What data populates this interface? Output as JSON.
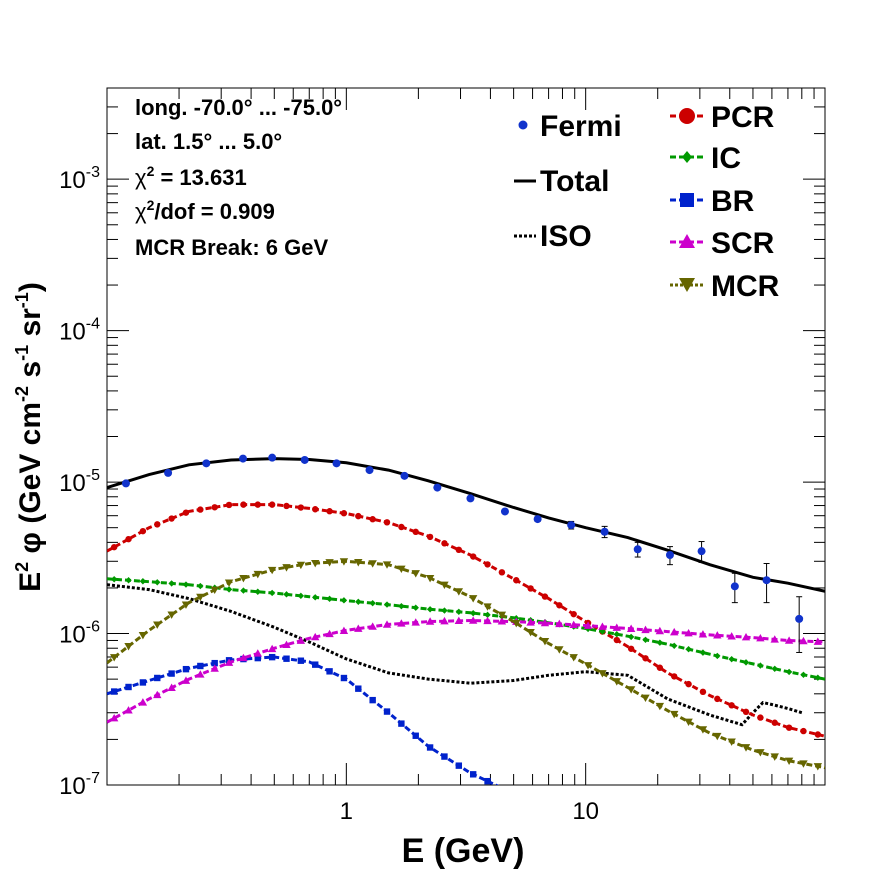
{
  "chart_data": {
    "type": "line",
    "x_scale": "log",
    "y_scale": "log",
    "xlim": [
      0.1,
      100
    ],
    "ylim": [
      1e-07,
      0.004
    ],
    "xlabel": "E (GeV)",
    "ylabel_parts": {
      "base1": "E",
      "sup1": "2",
      "mid": " φ (GeV cm",
      "sup2": "-2",
      "mid2": " s",
      "sup3": "-1",
      "mid3": " sr",
      "sup4": "-1",
      "end": ")"
    },
    "x_ticks": [
      {
        "value": 1,
        "label": "1"
      },
      {
        "value": 10,
        "label": "10"
      }
    ],
    "y_ticks": [
      {
        "value": 1e-07,
        "base": "10",
        "exp": "-7"
      },
      {
        "value": 1e-06,
        "base": "10",
        "exp": "-6"
      },
      {
        "value": 1e-05,
        "base": "10",
        "exp": "-5"
      },
      {
        "value": 0.0001,
        "base": "10",
        "exp": "-4"
      },
      {
        "value": 0.001,
        "base": "10",
        "exp": "-3"
      }
    ],
    "info": {
      "line1": "long. -70.0° ... -75.0°",
      "line2": "lat. 1.5° ... 5.0°",
      "chi2_sym": "χ",
      "chi2_sup": "2",
      "chi2_val": " = 13.631",
      "chi2dof_sym": "χ",
      "chi2dof_sup": "2",
      "chi2dof_val": "/dof = 0.909",
      "line5": "MCR Break:  6 GeV"
    },
    "legend_left": [
      {
        "label": "Fermi",
        "style": "marker-circle"
      },
      {
        "label": "Total",
        "style": "line-solid"
      },
      {
        "label": "ISO",
        "style": "line-dotted"
      }
    ],
    "legend_right": [
      {
        "label": "PCR",
        "color": "#cc0000",
        "marker": "circle"
      },
      {
        "label": "IC",
        "color": "#009900",
        "marker": "diamond"
      },
      {
        "label": "BR",
        "color": "#0022cc",
        "marker": "square"
      },
      {
        "label": "SCR",
        "color": "#cc00cc",
        "marker": "triangle-up"
      },
      {
        "label": "MCR",
        "color": "#666600",
        "marker": "triangle-down"
      }
    ],
    "fermi": {
      "color": "#1133cc",
      "x": [
        0.12,
        0.18,
        0.26,
        0.37,
        0.49,
        0.67,
        0.91,
        1.25,
        1.75,
        2.4,
        3.3,
        4.6,
        6.3,
        8.7,
        12,
        16.5,
        22.5,
        30.5,
        42,
        57,
        78
      ],
      "y": [
        9.8e-06,
        1.15e-05,
        1.33e-05,
        1.43e-05,
        1.45e-05,
        1.4e-05,
        1.33e-05,
        1.2e-05,
        1.1e-05,
        9.2e-06,
        7.8e-06,
        6.4e-06,
        5.7e-06,
        5.2e-06,
        4.7e-06,
        3.6e-06,
        3.3e-06,
        3.5e-06,
        2.05e-06,
        2.25e-06,
        1.25e-06
      ],
      "err": [
        2e-07,
        2e-07,
        2e-07,
        2e-07,
        2e-07,
        2e-07,
        2e-07,
        2e-07,
        2e-07,
        2e-07,
        2e-07,
        2e-07,
        2e-07,
        3e-07,
        4e-07,
        4e-07,
        4.5e-07,
        5.5e-07,
        4.5e-07,
        6.5e-07,
        5e-07
      ]
    },
    "series": [
      {
        "name": "Total",
        "color": "#000000",
        "dash": "solid",
        "marker": "none",
        "x": [
          0.1,
          0.15,
          0.22,
          0.33,
          0.5,
          0.7,
          1,
          1.5,
          2.2,
          3.3,
          5,
          7,
          10,
          15,
          22,
          33,
          50,
          70,
          100
        ],
        "y": [
          9.2e-06,
          1.12e-05,
          1.3e-05,
          1.4e-05,
          1.43e-05,
          1.41e-05,
          1.34e-05,
          1.2e-05,
          1.02e-05,
          8.4e-06,
          6.8e-06,
          5.8e-06,
          5e-06,
          4.3e-06,
          3.55e-06,
          2.85e-06,
          2.35e-06,
          2.15e-06,
          1.9e-06
        ]
      },
      {
        "name": "ISO",
        "color": "#000000",
        "dash": "dotted",
        "marker": "none",
        "x": [
          0.1,
          0.15,
          0.22,
          0.33,
          0.5,
          0.7,
          1,
          1.5,
          2.2,
          3.3,
          5,
          7,
          10,
          15,
          22,
          33,
          45,
          50,
          55,
          60,
          70,
          80
        ],
        "y": [
          2.1e-06,
          1.95e-06,
          1.7e-06,
          1.4e-06,
          1.1e-06,
          8.8e-07,
          6.8e-07,
          5.5e-07,
          5e-07,
          4.7e-07,
          4.9e-07,
          5.3e-07,
          5.6e-07,
          5.3e-07,
          3.7e-07,
          2.9e-07,
          2.5e-07,
          3e-07,
          3.5e-07,
          3.4e-07,
          3.2e-07,
          3e-07
        ]
      },
      {
        "name": "PCR",
        "color": "#cc0000",
        "dash": "dashed",
        "marker": "circle",
        "x": [
          0.1,
          0.15,
          0.22,
          0.33,
          0.5,
          0.7,
          1,
          1.5,
          2.2,
          3.3,
          5,
          7,
          10,
          15,
          22,
          33,
          50,
          70,
          100
        ],
        "y": [
          3.5e-06,
          5e-06,
          6.4e-06,
          7.1e-06,
          7.1e-06,
          6.7e-06,
          6.2e-06,
          5.4e-06,
          4.4e-06,
          3.3e-06,
          2.3e-06,
          1.7e-06,
          1.2e-06,
          8.2e-07,
          5.5e-07,
          3.9e-07,
          2.9e-07,
          2.4e-07,
          2.1e-07
        ]
      },
      {
        "name": "IC",
        "color": "#009900",
        "dash": "dashed",
        "marker": "diamond",
        "x": [
          0.1,
          0.15,
          0.22,
          0.33,
          0.5,
          0.7,
          1,
          1.5,
          2.2,
          3.3,
          5,
          7,
          10,
          15,
          22,
          33,
          50,
          70,
          100
        ],
        "y": [
          2.3e-06,
          2.2e-06,
          2.1e-06,
          1.95e-06,
          1.85e-06,
          1.75e-06,
          1.65e-06,
          1.55e-06,
          1.45e-06,
          1.37e-06,
          1.27e-06,
          1.18e-06,
          1.08e-06,
          9.6e-07,
          8.5e-07,
          7.3e-07,
          6.3e-07,
          5.6e-07,
          5e-07
        ]
      },
      {
        "name": "BR",
        "color": "#0022cc",
        "dash": "dashed",
        "marker": "square",
        "x": [
          0.1,
          0.15,
          0.22,
          0.33,
          0.5,
          0.7,
          1,
          1.5,
          2.2,
          3.3,
          4.5
        ],
        "y": [
          4e-07,
          4.9e-07,
          5.9e-07,
          6.7e-07,
          7e-07,
          6.5e-07,
          5e-07,
          3e-07,
          1.8e-07,
          1.2e-07,
          9.5e-08
        ]
      },
      {
        "name": "SCR",
        "color": "#cc00cc",
        "dash": "dashed",
        "marker": "triangle-up",
        "x": [
          0.1,
          0.15,
          0.22,
          0.33,
          0.5,
          0.7,
          1,
          1.5,
          2.2,
          3.3,
          5,
          7,
          10,
          15,
          22,
          33,
          50,
          70,
          100
        ],
        "y": [
          2.6e-07,
          3.7e-07,
          5e-07,
          6.5e-07,
          8e-07,
          9.3e-07,
          1.05e-06,
          1.15e-06,
          1.2e-06,
          1.22e-06,
          1.2e-06,
          1.17e-06,
          1.13e-06,
          1.08e-06,
          1.03e-06,
          9.8e-07,
          9.4e-07,
          9e-07,
          8.8e-07
        ]
      },
      {
        "name": "MCR",
        "color": "#666600",
        "dash": "dashed",
        "marker": "triangle-down",
        "x": [
          0.1,
          0.15,
          0.22,
          0.33,
          0.5,
          0.7,
          1,
          1.5,
          2.2,
          3.3,
          5,
          7,
          10,
          15,
          22,
          33,
          50,
          70,
          100
        ],
        "y": [
          6.4e-07,
          1.05e-06,
          1.6e-06,
          2.2e-06,
          2.65e-06,
          2.9e-06,
          3e-06,
          2.85e-06,
          2.35e-06,
          1.75e-06,
          1.2e-06,
          8.6e-07,
          6.3e-07,
          4.4e-07,
          3.1e-07,
          2.2e-07,
          1.7e-07,
          1.45e-07,
          1.3e-07
        ]
      }
    ]
  }
}
